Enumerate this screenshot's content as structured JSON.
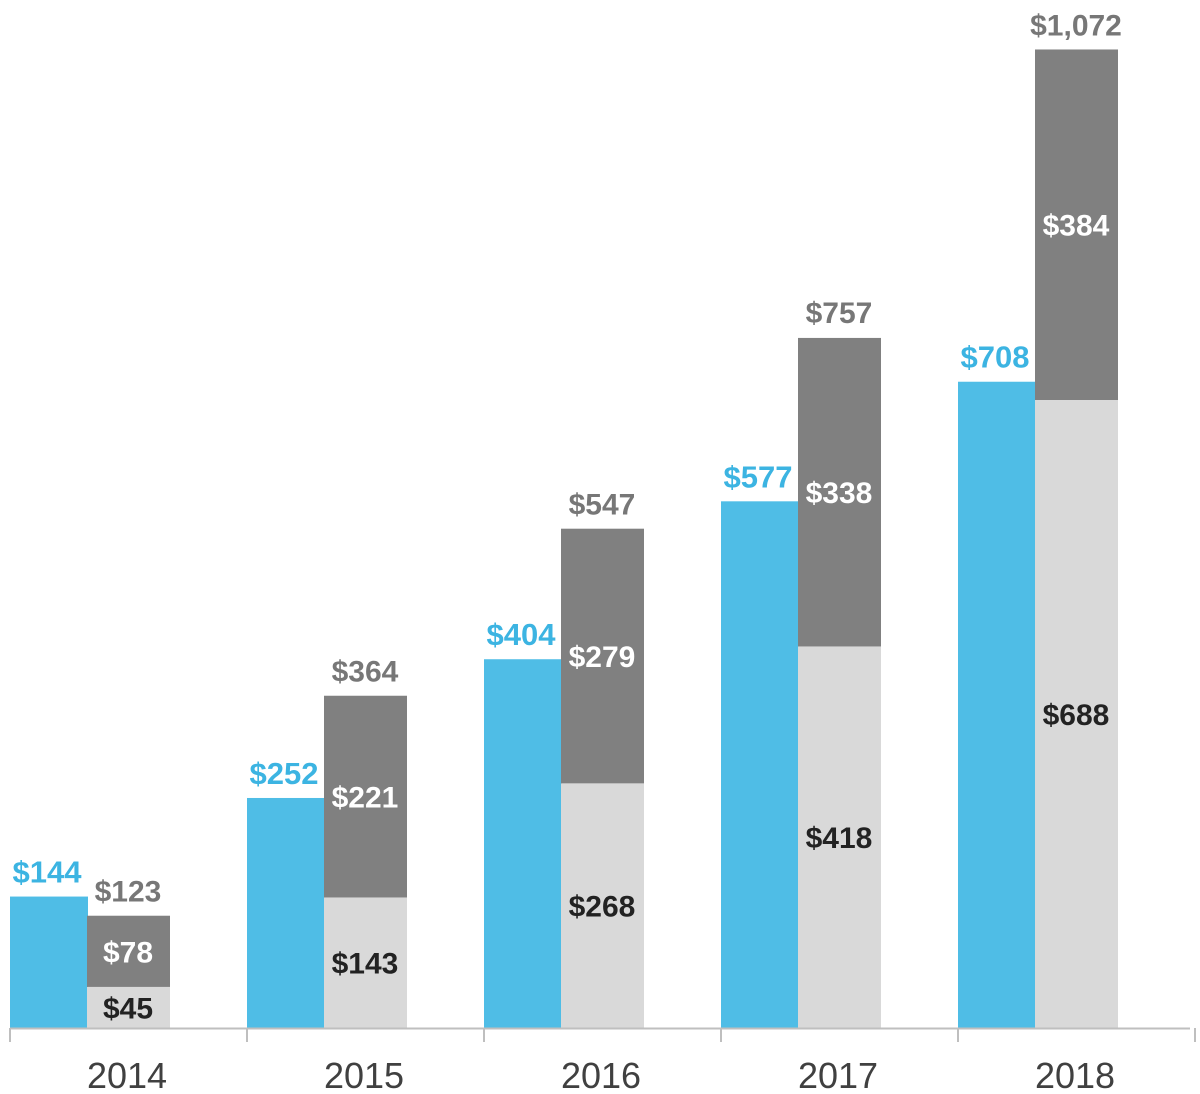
{
  "chart_data": {
    "type": "bar",
    "title": "",
    "xlabel": "",
    "ylabel": "",
    "categories": [
      "2014",
      "2015",
      "2016",
      "2017",
      "2018"
    ],
    "ylim": [
      0,
      1100
    ],
    "grid": false,
    "legend": "none",
    "series": [
      {
        "key": "blue",
        "stack": "single",
        "color": "#4fbde6",
        "values": [
          144,
          252,
          404,
          577,
          708
        ],
        "labels": [
          "$144",
          "$252",
          "$404",
          "$577",
          "$708"
        ],
        "label_color": "#3cb4e2"
      },
      {
        "key": "light",
        "stack": "stacked",
        "color": "#d9d9d9",
        "values": [
          45,
          143,
          268,
          418,
          688
        ],
        "labels": [
          "$45",
          "$143",
          "$268",
          "$418",
          "$688"
        ],
        "label_color": "#222222"
      },
      {
        "key": "dark",
        "stack": "stacked",
        "color": "#808080",
        "values": [
          78,
          221,
          279,
          338,
          384
        ],
        "labels": [
          "$78",
          "$221",
          "$279",
          "$338",
          "$384"
        ],
        "label_color": "#ffffff"
      }
    ],
    "totals": {
      "values": [
        123,
        364,
        547,
        757,
        1072
      ],
      "labels": [
        "$123",
        "$364",
        "$547",
        "$757",
        "$1,072"
      ],
      "color": "#777777"
    },
    "axis_color": "#bfbfbf",
    "tick_color": "#404040"
  }
}
